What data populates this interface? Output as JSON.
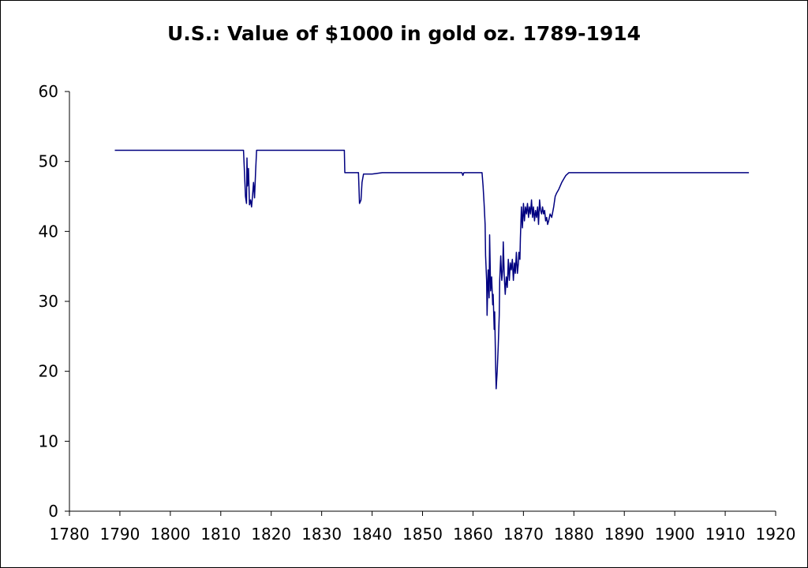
{
  "chart_data": {
    "type": "line",
    "title": "U.S.: Value of $1000 in gold oz. 1789-1914",
    "xlabel": "",
    "ylabel": "",
    "xlim": [
      1780,
      1920
    ],
    "ylim": [
      0,
      60
    ],
    "x_ticks": [
      1780,
      1790,
      1800,
      1810,
      1820,
      1830,
      1840,
      1850,
      1860,
      1870,
      1880,
      1890,
      1900,
      1910,
      1920
    ],
    "y_ticks": [
      0,
      10,
      20,
      30,
      40,
      50,
      60
    ],
    "grid": false,
    "legend": "none",
    "series": [
      {
        "color": "#000080",
        "points": [
          [
            1789,
            51.6
          ],
          [
            1814.5,
            51.6
          ],
          [
            1814.7,
            48.5
          ],
          [
            1814.9,
            45.0
          ],
          [
            1815.1,
            44.0
          ],
          [
            1815.2,
            50.5
          ],
          [
            1815.3,
            46.5
          ],
          [
            1815.5,
            49.0
          ],
          [
            1815.7,
            43.8
          ],
          [
            1815.9,
            44.5
          ],
          [
            1816.1,
            43.5
          ],
          [
            1816.3,
            45.2
          ],
          [
            1816.5,
            47.0
          ],
          [
            1816.7,
            44.8
          ],
          [
            1816.9,
            48.5
          ],
          [
            1817.1,
            51.6
          ],
          [
            1834.5,
            51.6
          ],
          [
            1834.6,
            48.4
          ],
          [
            1837.3,
            48.4
          ],
          [
            1837.5,
            44.0
          ],
          [
            1837.8,
            44.5
          ],
          [
            1838.0,
            47.0
          ],
          [
            1838.3,
            48.2
          ],
          [
            1840.0,
            48.2
          ],
          [
            1842.0,
            48.4
          ],
          [
            1857.8,
            48.4
          ],
          [
            1858.0,
            48.0
          ],
          [
            1858.2,
            48.4
          ],
          [
            1861.8,
            48.4
          ],
          [
            1862.0,
            46.5
          ],
          [
            1862.2,
            44.0
          ],
          [
            1862.4,
            41.0
          ],
          [
            1862.5,
            36.5
          ],
          [
            1862.7,
            33.0
          ],
          [
            1862.8,
            28.0
          ],
          [
            1863.0,
            34.5
          ],
          [
            1863.2,
            30.5
          ],
          [
            1863.3,
            39.5
          ],
          [
            1863.5,
            31.5
          ],
          [
            1863.7,
            33.5
          ],
          [
            1863.9,
            29.5
          ],
          [
            1864.0,
            31.0
          ],
          [
            1864.2,
            26.0
          ],
          [
            1864.3,
            28.5
          ],
          [
            1864.5,
            20.5
          ],
          [
            1864.6,
            17.5
          ],
          [
            1864.8,
            20.0
          ],
          [
            1865.0,
            23.5
          ],
          [
            1865.2,
            28.0
          ],
          [
            1865.3,
            33.0
          ],
          [
            1865.5,
            36.5
          ],
          [
            1865.7,
            33.0
          ],
          [
            1865.9,
            34.5
          ],
          [
            1866.0,
            38.5
          ],
          [
            1866.2,
            33.5
          ],
          [
            1866.4,
            31.0
          ],
          [
            1866.6,
            33.5
          ],
          [
            1866.8,
            32.0
          ],
          [
            1867.0,
            36.0
          ],
          [
            1867.2,
            33.0
          ],
          [
            1867.4,
            35.5
          ],
          [
            1867.6,
            34.5
          ],
          [
            1867.8,
            36.0
          ],
          [
            1868.0,
            33.0
          ],
          [
            1868.2,
            35.5
          ],
          [
            1868.4,
            34.0
          ],
          [
            1868.6,
            37.0
          ],
          [
            1868.8,
            34.0
          ],
          [
            1869.0,
            35.5
          ],
          [
            1869.1,
            37.0
          ],
          [
            1869.3,
            36.0
          ],
          [
            1869.4,
            39.0
          ],
          [
            1869.6,
            43.5
          ],
          [
            1869.8,
            40.5
          ],
          [
            1870.0,
            44.0
          ],
          [
            1870.2,
            41.5
          ],
          [
            1870.4,
            43.5
          ],
          [
            1870.6,
            42.5
          ],
          [
            1870.8,
            44.0
          ],
          [
            1871.0,
            42.0
          ],
          [
            1871.2,
            43.5
          ],
          [
            1871.4,
            42.5
          ],
          [
            1871.6,
            44.5
          ],
          [
            1871.8,
            42.0
          ],
          [
            1872.0,
            43.5
          ],
          [
            1872.2,
            41.5
          ],
          [
            1872.4,
            43.0
          ],
          [
            1872.6,
            42.0
          ],
          [
            1872.8,
            43.5
          ],
          [
            1873.0,
            41.0
          ],
          [
            1873.2,
            44.5
          ],
          [
            1873.4,
            43.0
          ],
          [
            1873.6,
            42.5
          ],
          [
            1873.8,
            43.5
          ],
          [
            1874.0,
            42.5
          ],
          [
            1874.2,
            43.0
          ],
          [
            1874.4,
            41.5
          ],
          [
            1874.6,
            42.0
          ],
          [
            1874.8,
            41.0
          ],
          [
            1875.0,
            41.5
          ],
          [
            1875.3,
            42.5
          ],
          [
            1875.6,
            42.0
          ],
          [
            1876.0,
            43.5
          ],
          [
            1876.3,
            45.0
          ],
          [
            1876.6,
            45.5
          ],
          [
            1877.0,
            46.0
          ],
          [
            1877.3,
            46.5
          ],
          [
            1877.6,
            47.0
          ],
          [
            1878.0,
            47.5
          ],
          [
            1878.4,
            48.0
          ],
          [
            1879.0,
            48.4
          ],
          [
            1914.7,
            48.4
          ]
        ]
      }
    ]
  }
}
